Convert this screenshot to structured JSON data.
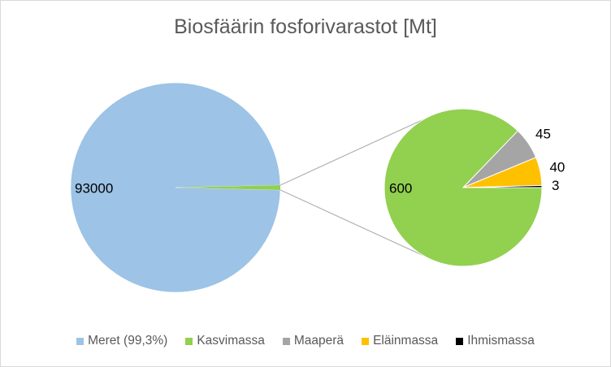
{
  "chart_data": {
    "type": "pie",
    "subtype": "pie-of-pie",
    "title": "Biosfäärin fosforivarastot [Mt]",
    "slices": [
      {
        "name": "Meret (99,3%)",
        "value": 93000,
        "label": "93000",
        "color": "#9dc3e6",
        "group": "main"
      },
      {
        "name": "Kasvimassa",
        "value": 600,
        "label": "600",
        "color": "#92d050",
        "group": "secondary"
      },
      {
        "name": "Maaperä",
        "value": 45,
        "label": "45",
        "color": "#a5a5a5",
        "group": "secondary"
      },
      {
        "name": "Eläinmassa",
        "value": 40,
        "label": "40",
        "color": "#ffc000",
        "group": "secondary"
      },
      {
        "name": "Ihmismassa",
        "value": 3,
        "label": "3",
        "color": "#000000",
        "group": "secondary"
      }
    ],
    "legend_position": "bottom"
  }
}
